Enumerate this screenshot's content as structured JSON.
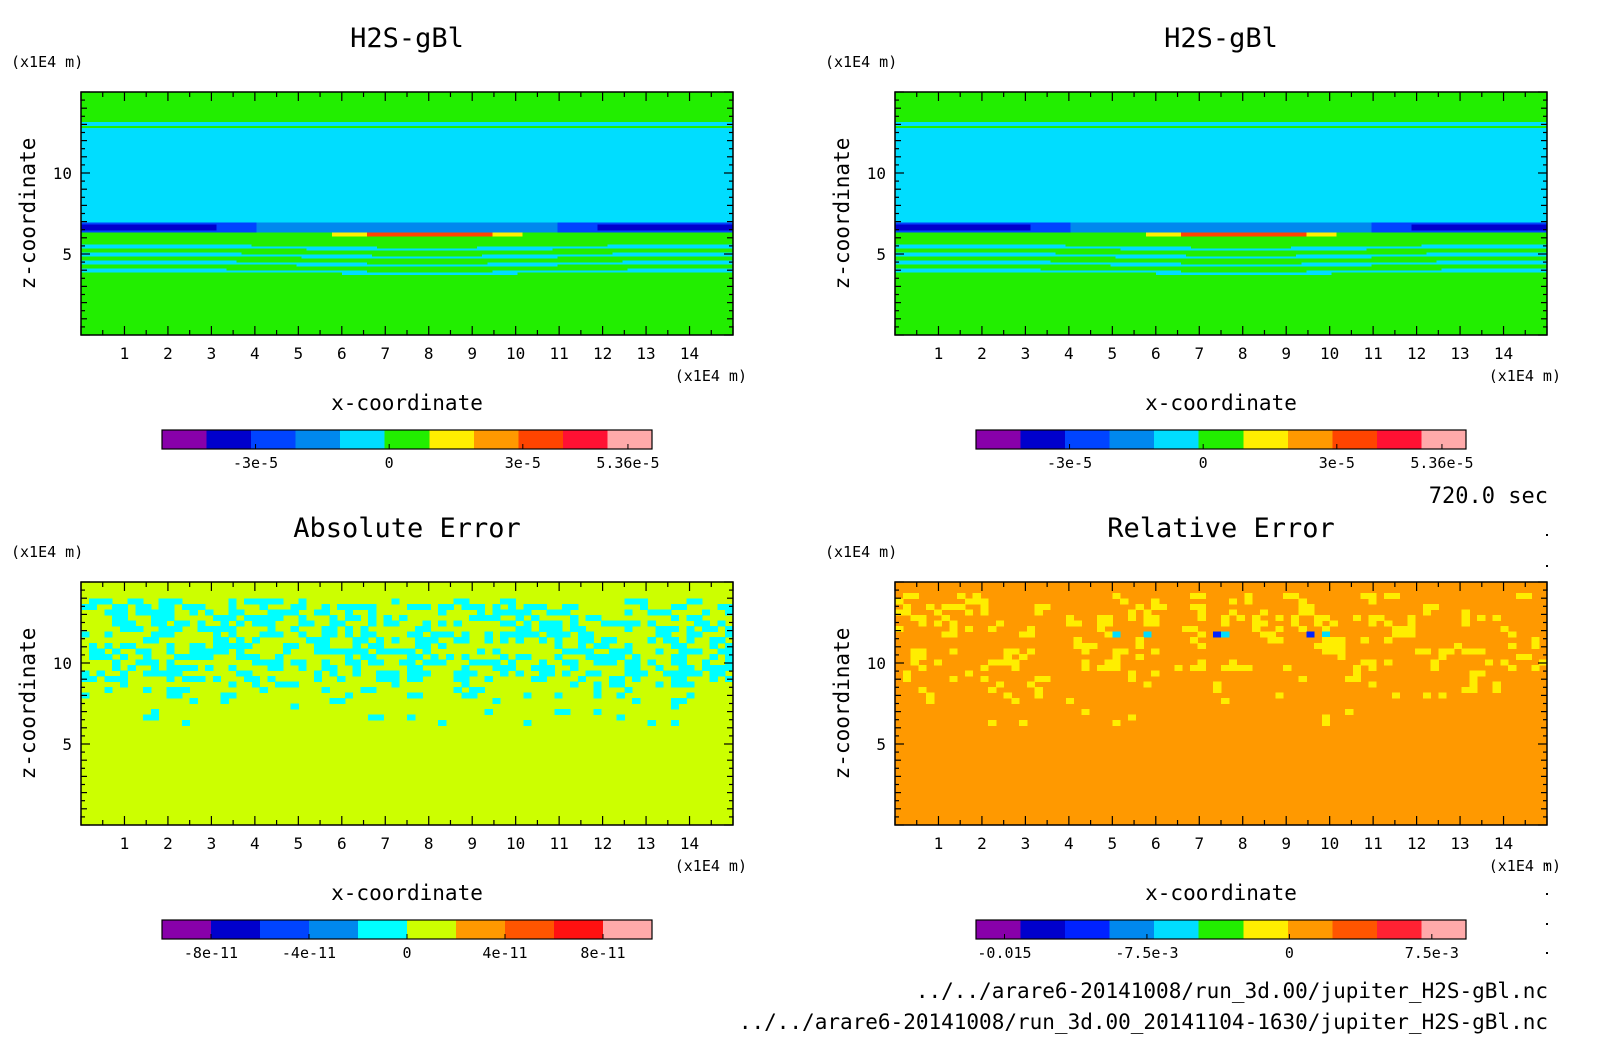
{
  "time_label": "720.0 sec",
  "files": [
    "../../arare6-20141008/run_3d.00/jupiter_H2S-gBl.nc",
    "../../arare6-20141008/run_3d.00_20141104-1630/jupiter_H2S-gBl.nc"
  ],
  "chart_data": [
    {
      "type": "heatmap",
      "title": "H2S-gBl",
      "xlabel": "x-coordinate",
      "ylabel": "z-coordinate",
      "x_unit": "(x1E4 m)",
      "y_unit": "(x1E4 m)",
      "xlim": [
        0,
        15
      ],
      "ylim": [
        0,
        15
      ],
      "x_ticks": [
        1,
        2,
        3,
        4,
        5,
        6,
        7,
        8,
        9,
        10,
        11,
        12,
        13,
        14
      ],
      "y_ticks": [
        5,
        10
      ],
      "field": "h2s",
      "colorbar": {
        "colors": [
          "#8800aa",
          "#0000cc",
          "#0044ff",
          "#0088ee",
          "#00ddff",
          "#22ee00",
          "#ffee00",
          "#ff9900",
          "#ff4400",
          "#ff1133",
          "#ffaaaa"
        ],
        "tick_labels": [
          "-3e-5",
          "0",
          "3e-5",
          "5.36e-5"
        ],
        "tick_values": [
          -3e-05,
          0,
          3e-05,
          5.36e-05
        ],
        "range": [
          -5.1e-05,
          5.9e-05
        ]
      }
    },
    {
      "type": "heatmap",
      "title": "H2S-gBl",
      "xlabel": "x-coordinate",
      "ylabel": "z-coordinate",
      "x_unit": "(x1E4 m)",
      "y_unit": "(x1E4 m)",
      "xlim": [
        0,
        15
      ],
      "ylim": [
        0,
        15
      ],
      "x_ticks": [
        1,
        2,
        3,
        4,
        5,
        6,
        7,
        8,
        9,
        10,
        11,
        12,
        13,
        14
      ],
      "y_ticks": [
        5,
        10
      ],
      "field": "h2s",
      "colorbar": {
        "colors": [
          "#8800aa",
          "#0000cc",
          "#0044ff",
          "#0088ee",
          "#00ddff",
          "#22ee00",
          "#ffee00",
          "#ff9900",
          "#ff4400",
          "#ff1133",
          "#ffaaaa"
        ],
        "tick_labels": [
          "-3e-5",
          "0",
          "3e-5",
          "5.36e-5"
        ],
        "tick_values": [
          -3e-05,
          0,
          3e-05,
          5.36e-05
        ],
        "range": [
          -5.1e-05,
          5.9e-05
        ]
      }
    },
    {
      "type": "heatmap",
      "title": "Absolute Error",
      "xlabel": "x-coordinate",
      "ylabel": "z-coordinate",
      "x_unit": "(x1E4 m)",
      "y_unit": "(x1E4 m)",
      "xlim": [
        0,
        15
      ],
      "ylim": [
        0,
        15
      ],
      "x_ticks": [
        1,
        2,
        3,
        4,
        5,
        6,
        7,
        8,
        9,
        10,
        11,
        12,
        13,
        14
      ],
      "y_ticks": [
        5,
        10
      ],
      "field": "abs_error",
      "colorbar": {
        "colors": [
          "#8800aa",
          "#0000cc",
          "#0044ff",
          "#0088ee",
          "#00ffff",
          "#ccff00",
          "#ff9900",
          "#ff5500",
          "#ff1111",
          "#ffaaaa"
        ],
        "tick_labels": [
          "-8e-11",
          "-4e-11",
          "0",
          "4e-11",
          "8e-11"
        ],
        "tick_values": [
          -8e-11,
          -4e-11,
          0,
          4e-11,
          8e-11
        ],
        "range": [
          -1e-10,
          1e-10
        ]
      }
    },
    {
      "type": "heatmap",
      "title": "Relative Error",
      "xlabel": "x-coordinate",
      "ylabel": "z-coordinate",
      "x_unit": "(x1E4 m)",
      "y_unit": "(x1E4 m)",
      "xlim": [
        0,
        15
      ],
      "ylim": [
        0,
        15
      ],
      "x_ticks": [
        1,
        2,
        3,
        4,
        5,
        6,
        7,
        8,
        9,
        10,
        11,
        12,
        13,
        14
      ],
      "y_ticks": [
        5,
        10
      ],
      "field": "rel_error",
      "colorbar": {
        "colors": [
          "#8800aa",
          "#0000cc",
          "#0022ff",
          "#0088ee",
          "#00ddff",
          "#22ee00",
          "#ffee00",
          "#ff9900",
          "#ff5500",
          "#ff2233",
          "#ffaaaa"
        ],
        "tick_labels": [
          "-0.015",
          "-7.5e-3",
          "0",
          "7.5e-3"
        ],
        "tick_values": [
          -0.015,
          -0.0075,
          0,
          0.0075
        ],
        "range": [
          -0.0165,
          0.0093
        ]
      }
    }
  ]
}
